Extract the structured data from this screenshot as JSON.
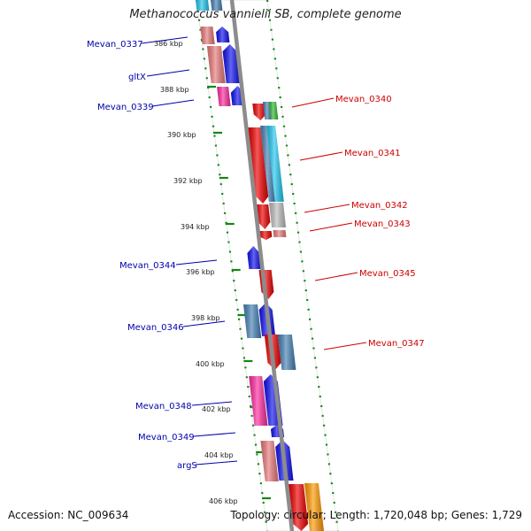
{
  "title": "Methanococcus vannielii SB, complete genome",
  "accession": "Accession: NC_009634",
  "topology": "Topology: circular; Length: 1,720,048 bp; Genes: 1,729",
  "colors": {
    "red": "#ee0000",
    "blue": "#1111ee",
    "steelblue": "#4682b4",
    "cyan": "#22c7ee",
    "pink": "#ff2ca0",
    "salmon": "#e87a7a",
    "gray": "#bdbdbd",
    "green": "#33bb33",
    "orange": "#ff9a00",
    "tick": "#118811",
    "backbone": "#8c8c8c",
    "label_left": "#0000aa",
    "label_right": "#cc0000"
  },
  "kbp_labels": [
    "386 kbp",
    "388 kbp",
    "390 kbp",
    "392 kbp",
    "394 kbp",
    "396 kbp",
    "398 kbp",
    "400 kbp",
    "402 kbp",
    "404 kbp",
    "406 kbp"
  ],
  "left_labels": [
    "Mevan_0337",
    "gltX",
    "Mevan_0339",
    "Mevan_0344",
    "Mevan_0346",
    "Mevan_0348",
    "Mevan_0349",
    "argS"
  ],
  "right_labels": [
    "Mevan_0340",
    "Mevan_0341",
    "Mevan_0342",
    "Mevan_0343",
    "Mevan_0345",
    "Mevan_0347"
  ]
}
